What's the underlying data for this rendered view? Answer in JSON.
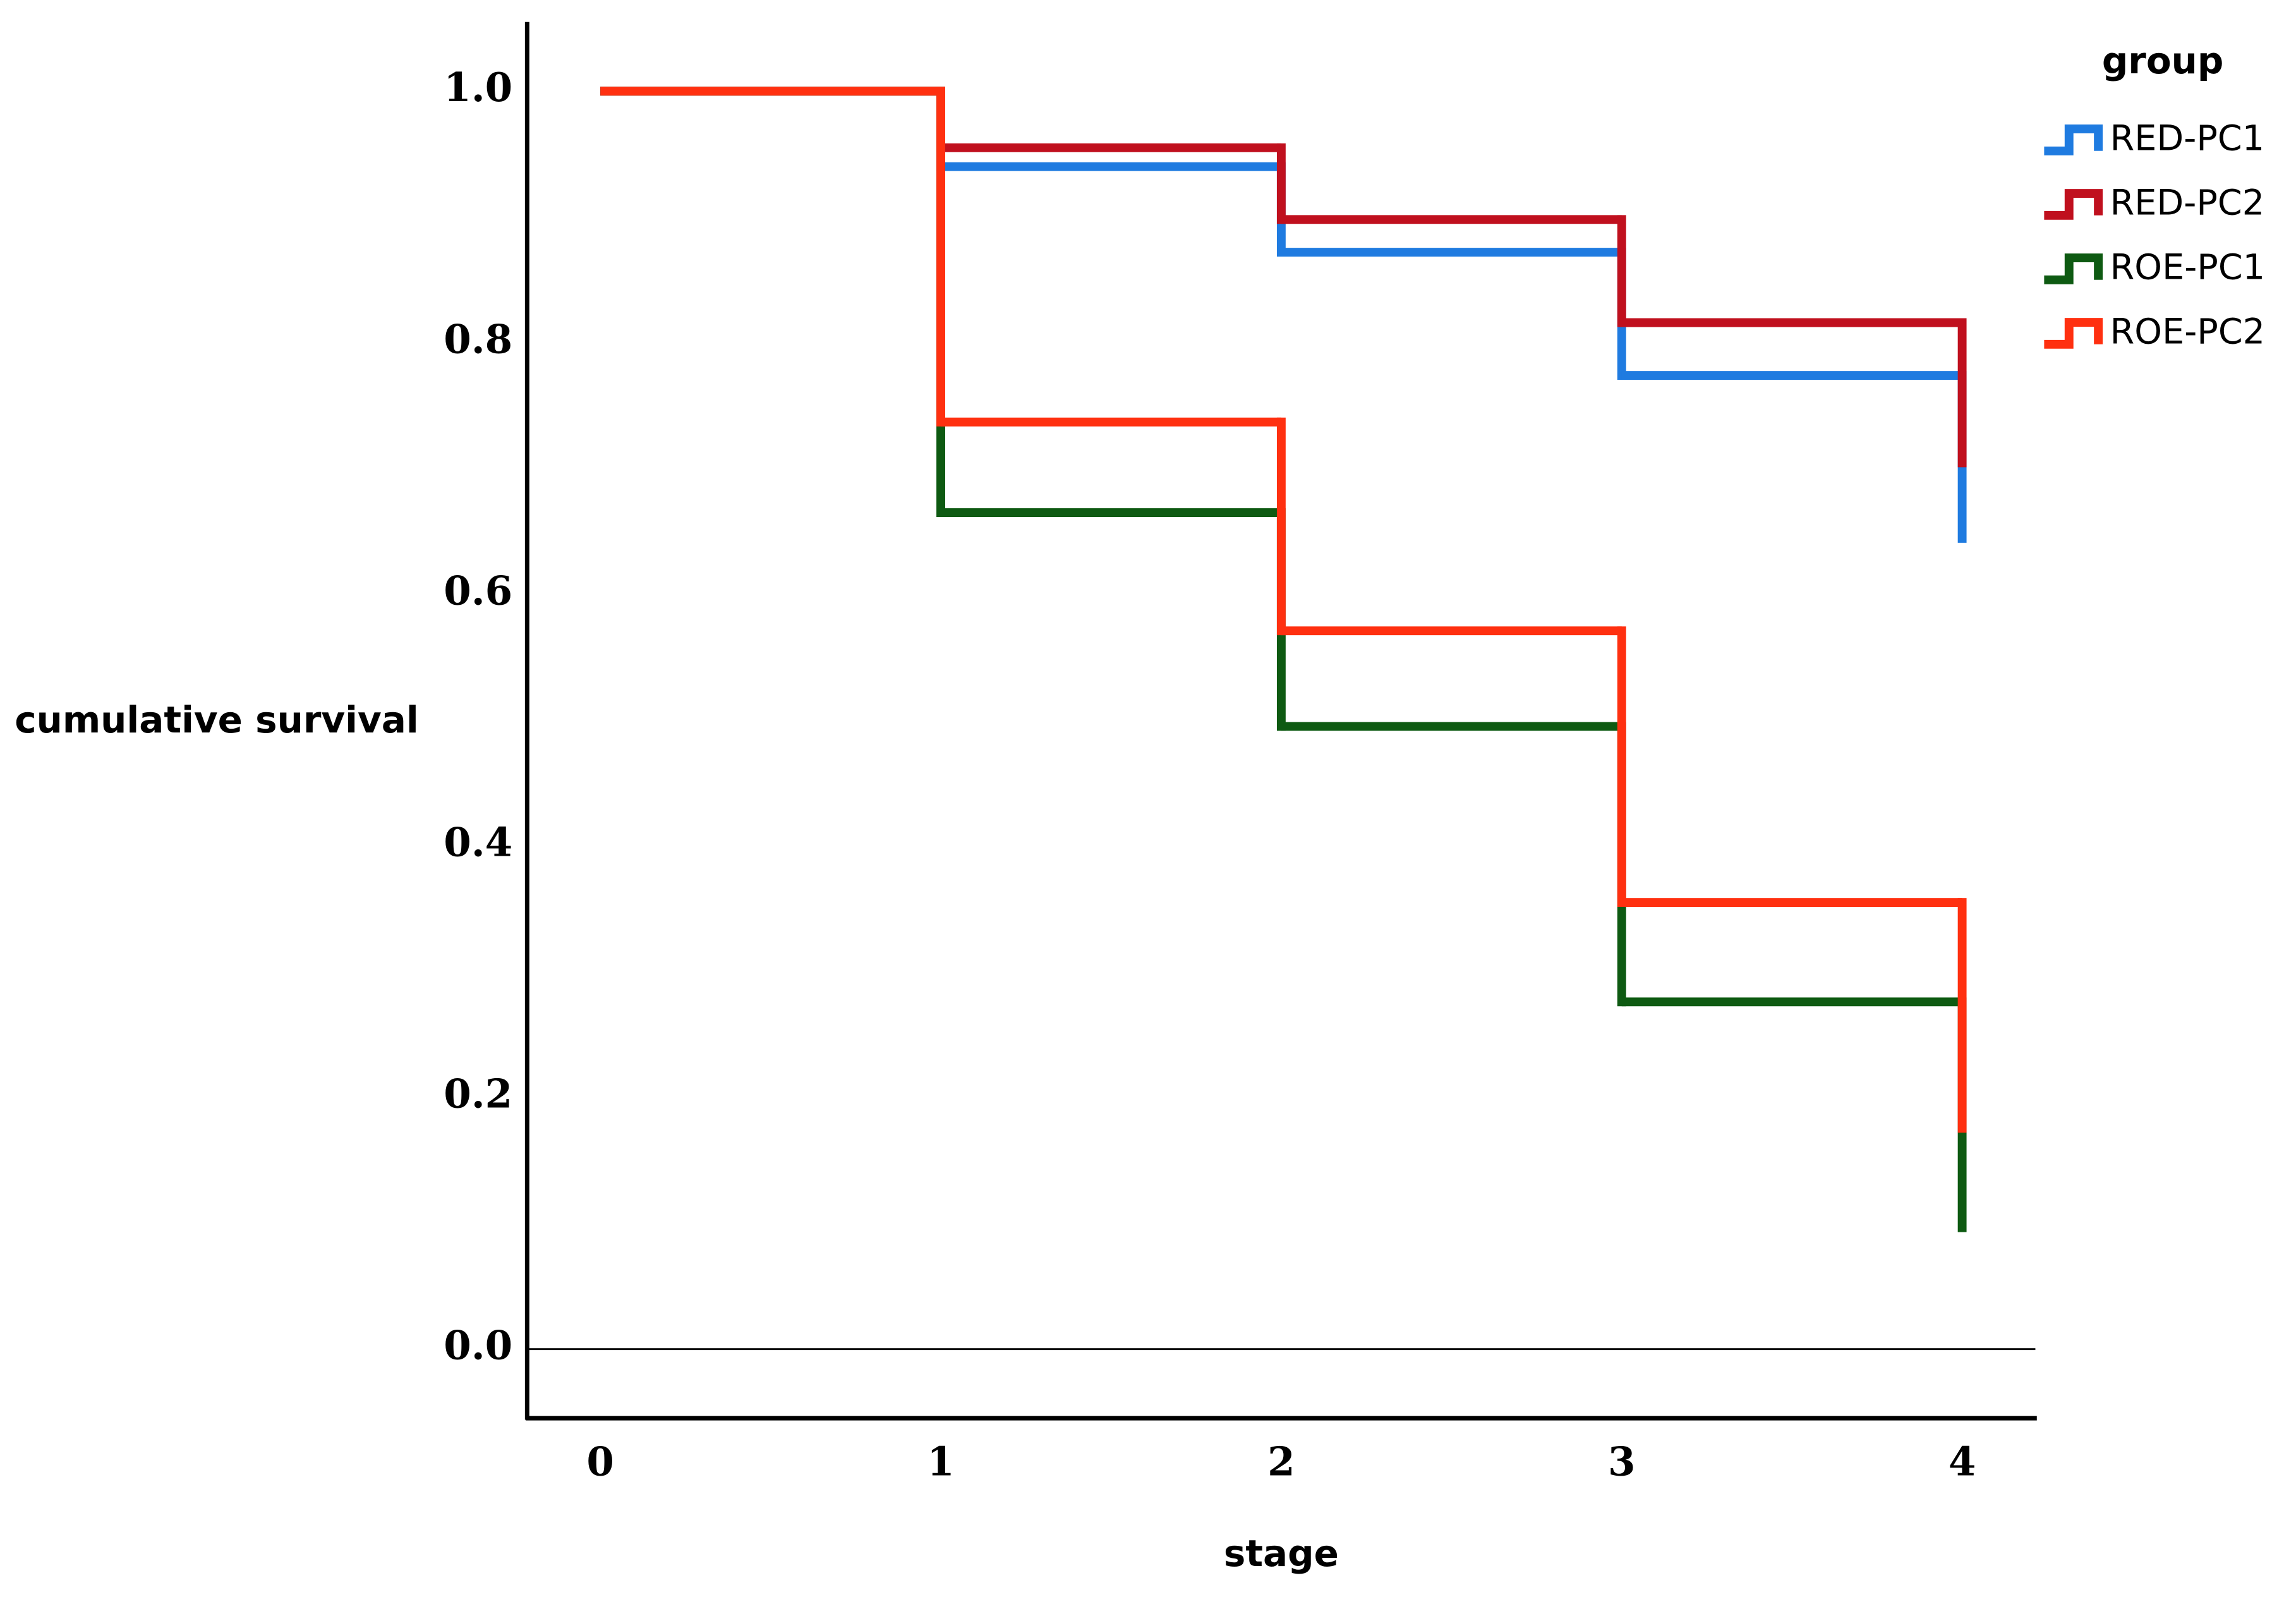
{
  "chart_data": {
    "type": "step",
    "x_label": "stage",
    "y_label": "cumulative survival",
    "legend_title": "group",
    "legend": "top-right",
    "x": [
      0,
      1,
      2,
      3,
      4
    ],
    "series": [
      {
        "name": "RED-PC1",
        "color": "#1f7be0",
        "values": [
          1.0,
          0.94,
          0.872,
          0.774,
          0.641
        ]
      },
      {
        "name": "RED-PC2",
        "color": "#c0101e",
        "values": [
          1.0,
          0.955,
          0.898,
          0.816,
          0.701
        ]
      },
      {
        "name": "ROE-PC1",
        "color": "#0e5a12",
        "values": [
          1.0,
          0.665,
          0.495,
          0.276,
          0.093
        ]
      },
      {
        "name": "ROE-PC2",
        "color": "#ff3010",
        "values": [
          1.0,
          0.737,
          0.571,
          0.355,
          0.172
        ]
      }
    ],
    "xlim": [
      -0.215,
      4.215
    ],
    "xticks": [
      0,
      1,
      2,
      3,
      4
    ],
    "ylim": [
      -0.055,
      1.055
    ],
    "yticks": [
      {
        "value": 0,
        "label": "0.0"
      },
      0.2,
      0.4,
      0.6,
      0.8,
      {
        "value": 1,
        "label": "1.0"
      }
    ],
    "reference_line": 0
  }
}
